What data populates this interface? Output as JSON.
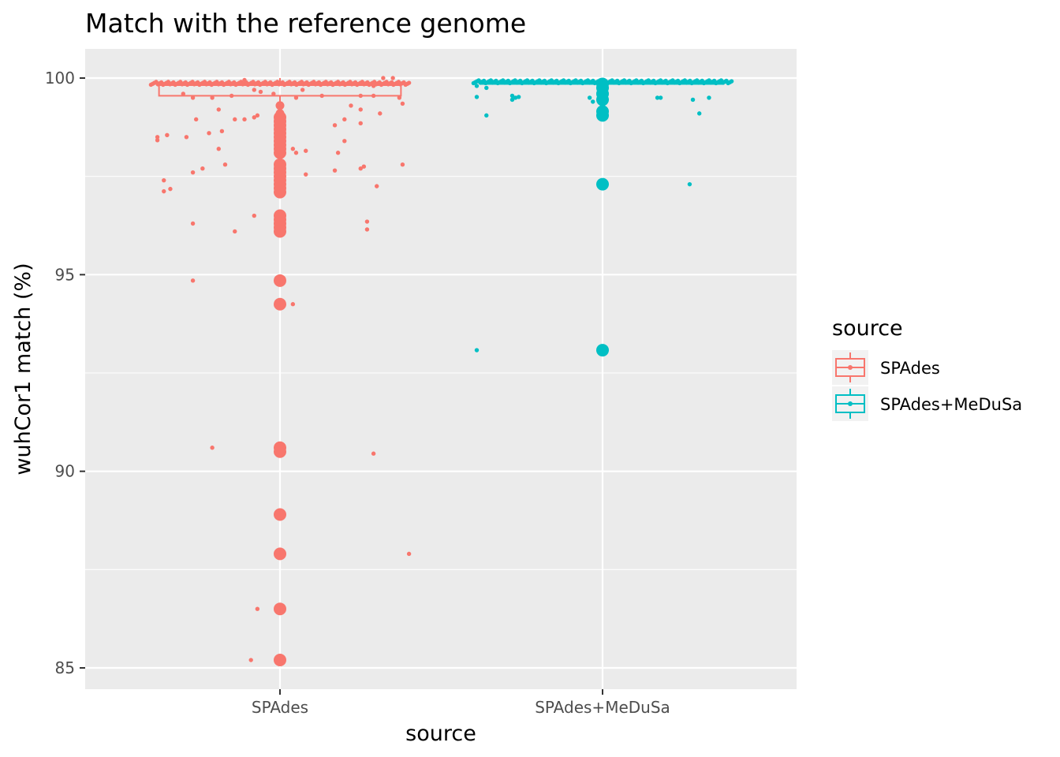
{
  "chart_data": {
    "type": "scatter",
    "geoms": [
      "boxplot",
      "jitter",
      "count"
    ],
    "title": "Match with the reference genome",
    "xlabel": "source",
    "ylabel": "wuhCor1 match (%)",
    "categories": [
      "SPAdes",
      "SPAdes+MeDuSa"
    ],
    "ylim": [
      84.5,
      100.75
    ],
    "yticks": [
      85,
      90,
      95,
      100
    ],
    "grid": true,
    "legend": {
      "title": "source",
      "position": "right",
      "entries": [
        "SPAdes",
        "SPAdes+MeDuSa"
      ]
    },
    "colors": {
      "SPAdes": "#F8766D",
      "SPAdes+MeDuSa": "#00BFC4",
      "panel": "#EBEBEB",
      "grid": "#FFFFFF"
    },
    "boxes": [
      {
        "category": "SPAdes",
        "q1": 99.55,
        "median": 99.83,
        "q3": 99.88,
        "whisker_low": 99.2,
        "whisker_high": 100.0
      },
      {
        "category": "SPAdes+MeDuSa",
        "q1": 99.85,
        "median": 99.87,
        "q3": 99.89,
        "whisker_low": 99.84,
        "whisker_high": 99.9
      }
    ],
    "series": [
      {
        "name": "SPAdes",
        "category": "SPAdes",
        "stacked_points": [
          {
            "y": 99.0,
            "size": 3
          },
          {
            "y": 98.9,
            "size": 3
          },
          {
            "y": 98.8,
            "size": 3
          },
          {
            "y": 98.7,
            "size": 3
          },
          {
            "y": 98.6,
            "size": 3
          },
          {
            "y": 98.5,
            "size": 3
          },
          {
            "y": 98.4,
            "size": 3
          },
          {
            "y": 98.3,
            "size": 3
          },
          {
            "y": 98.2,
            "size": 3
          },
          {
            "y": 98.1,
            "size": 3
          },
          {
            "y": 97.8,
            "size": 3
          },
          {
            "y": 97.7,
            "size": 3
          },
          {
            "y": 97.6,
            "size": 3
          },
          {
            "y": 97.5,
            "size": 3
          },
          {
            "y": 97.4,
            "size": 3
          },
          {
            "y": 97.3,
            "size": 3
          },
          {
            "y": 97.2,
            "size": 3
          },
          {
            "y": 97.1,
            "size": 3
          },
          {
            "y": 96.5,
            "size": 3
          },
          {
            "y": 96.4,
            "size": 3
          },
          {
            "y": 96.3,
            "size": 3
          },
          {
            "y": 96.2,
            "size": 3
          },
          {
            "y": 96.1,
            "size": 3
          },
          {
            "y": 94.85,
            "size": 3
          },
          {
            "y": 94.25,
            "size": 3
          },
          {
            "y": 90.6,
            "size": 3
          },
          {
            "y": 90.5,
            "size": 3
          },
          {
            "y": 88.9,
            "size": 3
          },
          {
            "y": 87.9,
            "size": 3
          },
          {
            "y": 86.5,
            "size": 3
          },
          {
            "y": 85.2,
            "size": 3
          },
          {
            "y": 99.3,
            "size": 2
          },
          {
            "y": 99.1,
            "size": 2
          }
        ],
        "jitter_points": [
          {
            "x": -0.38,
            "y": 98.5
          },
          {
            "x": -0.38,
            "y": 98.42
          },
          {
            "x": -0.35,
            "y": 98.55
          },
          {
            "x": -0.36,
            "y": 97.4
          },
          {
            "x": -0.36,
            "y": 97.12
          },
          {
            "x": -0.34,
            "y": 97.18
          },
          {
            "x": -0.29,
            "y": 98.5
          },
          {
            "x": -0.27,
            "y": 99.5
          },
          {
            "x": -0.26,
            "y": 98.95
          },
          {
            "x": -0.27,
            "y": 97.6
          },
          {
            "x": -0.24,
            "y": 97.7
          },
          {
            "x": -0.27,
            "y": 96.3
          },
          {
            "x": -0.27,
            "y": 94.85
          },
          {
            "x": -0.22,
            "y": 98.6
          },
          {
            "x": -0.21,
            "y": 99.5
          },
          {
            "x": -0.19,
            "y": 99.2
          },
          {
            "x": -0.19,
            "y": 98.2
          },
          {
            "x": -0.18,
            "y": 98.65
          },
          {
            "x": -0.17,
            "y": 97.8
          },
          {
            "x": -0.15,
            "y": 99.55
          },
          {
            "x": -0.14,
            "y": 98.95
          },
          {
            "x": -0.21,
            "y": 90.6
          },
          {
            "x": -0.11,
            "y": 98.95
          },
          {
            "x": -0.08,
            "y": 99.0
          },
          {
            "x": -0.07,
            "y": 99.05
          },
          {
            "x": -0.08,
            "y": 99.7
          },
          {
            "x": -0.11,
            "y": 99.95
          },
          {
            "x": -0.08,
            "y": 96.5
          },
          {
            "x": -0.14,
            "y": 96.1
          },
          {
            "x": -0.07,
            "y": 86.5
          },
          {
            "x": -0.09,
            "y": 85.2
          },
          {
            "x": -0.06,
            "y": 99.65
          },
          {
            "x": 0.04,
            "y": 98.2
          },
          {
            "x": 0.05,
            "y": 98.1
          },
          {
            "x": 0.08,
            "y": 98.15
          },
          {
            "x": 0.08,
            "y": 97.55
          },
          {
            "x": 0.04,
            "y": 94.25
          },
          {
            "x": 0.13,
            "y": 99.55
          },
          {
            "x": 0.17,
            "y": 98.8
          },
          {
            "x": 0.17,
            "y": 97.65
          },
          {
            "x": 0.18,
            "y": 98.1
          },
          {
            "x": 0.2,
            "y": 98.4
          },
          {
            "x": 0.2,
            "y": 98.95
          },
          {
            "x": 0.22,
            "y": 99.3
          },
          {
            "x": 0.25,
            "y": 99.55
          },
          {
            "x": 0.25,
            "y": 99.2
          },
          {
            "x": 0.25,
            "y": 98.85
          },
          {
            "x": 0.25,
            "y": 97.7
          },
          {
            "x": 0.26,
            "y": 97.75
          },
          {
            "x": 0.27,
            "y": 96.35
          },
          {
            "x": 0.27,
            "y": 96.15
          },
          {
            "x": 0.29,
            "y": 99.8
          },
          {
            "x": 0.29,
            "y": 99.55
          },
          {
            "x": 0.3,
            "y": 97.25
          },
          {
            "x": 0.29,
            "y": 90.45
          },
          {
            "x": 0.31,
            "y": 99.1
          },
          {
            "x": 0.32,
            "y": 100.0
          },
          {
            "x": 0.35,
            "y": 100.0
          },
          {
            "x": 0.37,
            "y": 99.5
          },
          {
            "x": 0.38,
            "y": 99.35
          },
          {
            "x": 0.38,
            "y": 97.8
          },
          {
            "x": 0.4,
            "y": 87.9
          },
          {
            "x": -0.3,
            "y": 99.6
          },
          {
            "x": 0.05,
            "y": 99.5
          },
          {
            "x": -0.02,
            "y": 99.6
          },
          {
            "x": 0.07,
            "y": 99.7
          }
        ]
      },
      {
        "name": "SPAdes+MeDuSa",
        "category": "SPAdes+MeDuSa",
        "stacked_points": [
          {
            "y": 99.85,
            "size": 3
          },
          {
            "y": 99.75,
            "size": 3
          },
          {
            "y": 99.6,
            "size": 3
          },
          {
            "y": 99.45,
            "size": 3
          },
          {
            "y": 99.15,
            "size": 3
          },
          {
            "y": 99.05,
            "size": 3
          },
          {
            "y": 97.3,
            "size": 3
          },
          {
            "y": 93.08,
            "size": 3
          },
          {
            "y": 99.5,
            "size": 2
          }
        ],
        "jitter_points": [
          {
            "x": -0.39,
            "y": 99.52
          },
          {
            "x": -0.36,
            "y": 99.05
          },
          {
            "x": -0.39,
            "y": 93.08
          },
          {
            "x": -0.28,
            "y": 99.55
          },
          {
            "x": -0.28,
            "y": 99.45
          },
          {
            "x": -0.27,
            "y": 99.5
          },
          {
            "x": -0.26,
            "y": 99.52
          },
          {
            "x": -0.04,
            "y": 99.5
          },
          {
            "x": -0.03,
            "y": 99.4
          },
          {
            "x": 0.17,
            "y": 99.5
          },
          {
            "x": 0.18,
            "y": 99.5
          },
          {
            "x": 0.28,
            "y": 99.45
          },
          {
            "x": 0.3,
            "y": 99.1
          },
          {
            "x": 0.33,
            "y": 99.5
          },
          {
            "x": 0.27,
            "y": 97.3
          },
          {
            "x": -0.39,
            "y": 99.8
          },
          {
            "x": -0.38,
            "y": 99.9
          },
          {
            "x": -0.36,
            "y": 99.75
          }
        ]
      }
    ]
  }
}
